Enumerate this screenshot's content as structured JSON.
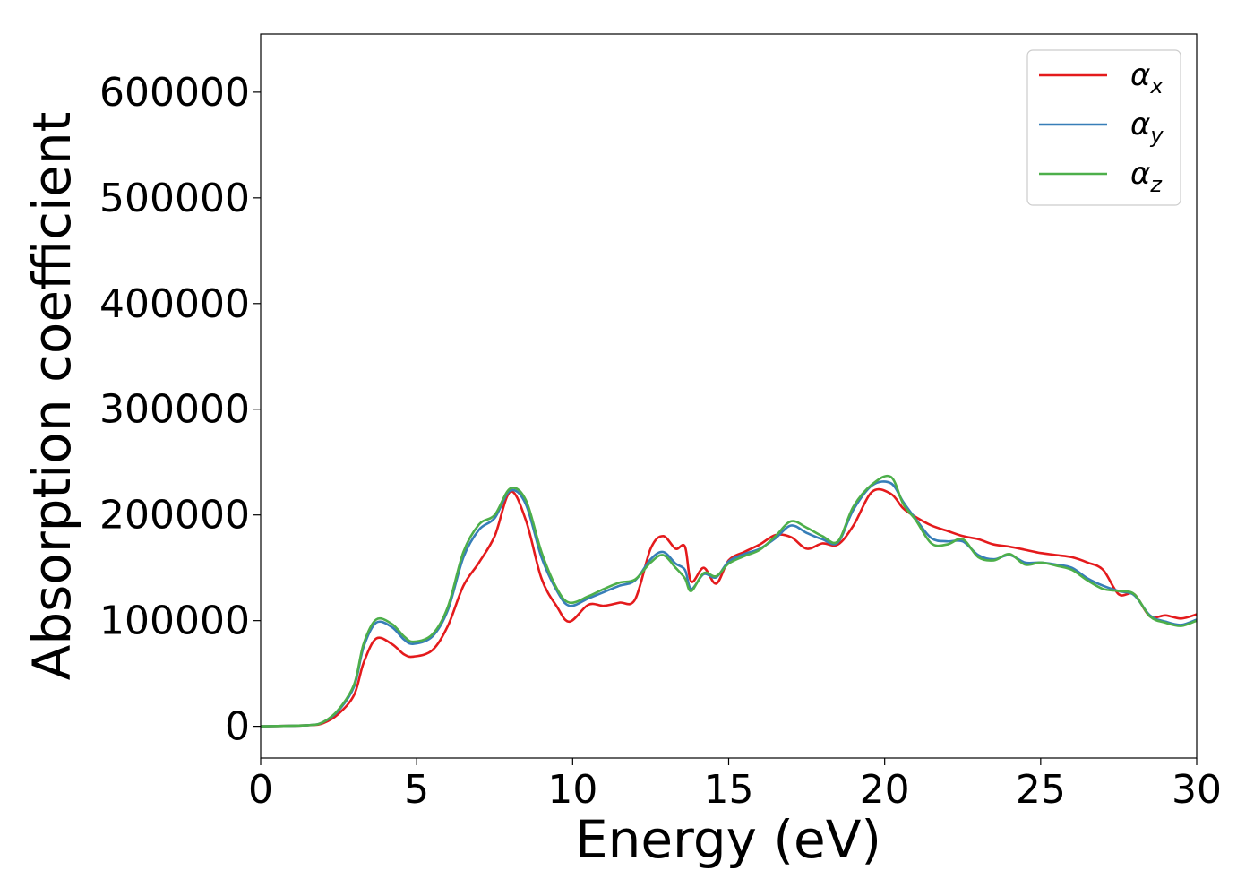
{
  "chart_data": {
    "type": "line",
    "title": "",
    "xlabel": "Energy (eV)",
    "ylabel": "Absorption coefficient",
    "xlim": [
      0,
      30
    ],
    "ylim": [
      -30000,
      655000
    ],
    "xticks": [
      0,
      5,
      10,
      15,
      20,
      25,
      30
    ],
    "yticks": [
      0,
      100000,
      200000,
      300000,
      400000,
      500000,
      600000
    ],
    "xtick_labels": [
      "0",
      "5",
      "10",
      "15",
      "20",
      "25",
      "30"
    ],
    "ytick_labels": [
      "0",
      "100000",
      "200000",
      "300000",
      "400000",
      "500000",
      "600000"
    ],
    "grid": false,
    "legend_position": "top-right",
    "series": [
      {
        "name": "α",
        "subscript": "x",
        "color": "#e41a1c",
        "x": [
          0,
          1.5,
          2,
          2.5,
          3,
          3.3,
          3.7,
          4.2,
          4.6,
          4.9,
          5.5,
          6,
          6.5,
          7,
          7.5,
          8,
          8.5,
          9,
          9.5,
          9.9,
          10.5,
          11,
          11.5,
          12,
          12.5,
          12.9,
          13.3,
          13.6,
          13.8,
          14.2,
          14.6,
          15,
          15.5,
          16,
          16.5,
          17,
          17.5,
          18,
          18.5,
          19,
          19.6,
          20.2,
          20.6,
          21,
          21.5,
          22,
          22.5,
          23,
          23.5,
          24,
          24.5,
          25,
          25.5,
          26,
          26.5,
          27,
          27.5,
          28,
          28.5,
          29,
          29.5,
          30
        ],
        "y": [
          0,
          1000,
          3000,
          12000,
          30000,
          60000,
          83000,
          78000,
          68000,
          66000,
          72000,
          95000,
          133000,
          155000,
          180000,
          222000,
          195000,
          140000,
          113000,
          99000,
          115000,
          114000,
          117000,
          120000,
          168000,
          180000,
          168000,
          170000,
          137000,
          150000,
          135000,
          157000,
          165000,
          172000,
          181000,
          179000,
          168000,
          173000,
          172000,
          190000,
          222000,
          220000,
          206000,
          198000,
          190000,
          185000,
          180000,
          177000,
          172000,
          170000,
          167000,
          164000,
          162000,
          160000,
          155000,
          148000,
          125000,
          125000,
          104000,
          105000,
          102000,
          106000
        ]
      },
      {
        "name": "α",
        "subscript": "y",
        "color": "#377eb8",
        "x": [
          0,
          1.5,
          2,
          2.5,
          3,
          3.3,
          3.7,
          4.2,
          4.6,
          4.9,
          5.5,
          6,
          6.5,
          7,
          7.5,
          8,
          8.5,
          9,
          9.5,
          9.9,
          10.5,
          11,
          11.5,
          12,
          12.5,
          12.9,
          13.3,
          13.6,
          13.8,
          14.2,
          14.6,
          15,
          15.5,
          16,
          16.5,
          17,
          17.5,
          18,
          18.5,
          19,
          19.6,
          20.2,
          20.6,
          21,
          21.5,
          22,
          22.5,
          23,
          23.5,
          24,
          24.5,
          25,
          25.5,
          26,
          26.5,
          27,
          27.5,
          28,
          28.5,
          29,
          29.5,
          30
        ],
        "y": [
          0,
          1000,
          4000,
          15000,
          38000,
          75000,
          98000,
          94000,
          82000,
          78000,
          85000,
          110000,
          160000,
          186000,
          197000,
          223000,
          210000,
          160000,
          128000,
          114000,
          121000,
          127000,
          133000,
          138000,
          158000,
          165000,
          154000,
          148000,
          130000,
          144000,
          141000,
          156000,
          163000,
          168000,
          178000,
          190000,
          183000,
          177000,
          174000,
          205000,
          228000,
          230000,
          212000,
          196000,
          178000,
          175000,
          175000,
          162000,
          158000,
          162000,
          155000,
          155000,
          153000,
          150000,
          140000,
          133000,
          128000,
          124000,
          105000,
          99000,
          96000,
          101000
        ]
      },
      {
        "name": "α",
        "subscript": "z",
        "color": "#4daf4a",
        "x": [
          0,
          1.5,
          2,
          2.5,
          3,
          3.3,
          3.7,
          4.2,
          4.6,
          4.9,
          5.5,
          6,
          6.5,
          7,
          7.5,
          8,
          8.5,
          9,
          9.5,
          9.9,
          10.5,
          11,
          11.5,
          12,
          12.5,
          12.9,
          13.3,
          13.6,
          13.8,
          14.2,
          14.6,
          15,
          15.5,
          16,
          16.5,
          17,
          17.5,
          18,
          18.5,
          19,
          19.6,
          20.2,
          20.6,
          21,
          21.5,
          22,
          22.5,
          23,
          23.5,
          24,
          24.5,
          25,
          25.5,
          26,
          26.5,
          27,
          27.5,
          28,
          28.5,
          29,
          29.5,
          30
        ],
        "y": [
          0,
          1000,
          4000,
          16000,
          40000,
          78000,
          101000,
          97000,
          85000,
          80000,
          87000,
          113000,
          165000,
          191000,
          200000,
          225000,
          214000,
          165000,
          130000,
          117000,
          123000,
          130000,
          136000,
          139000,
          155000,
          162000,
          150000,
          140000,
          128000,
          145000,
          142000,
          154000,
          161000,
          167000,
          180000,
          194000,
          188000,
          180000,
          175000,
          208000,
          229000,
          236000,
          210000,
          195000,
          173000,
          172000,
          177000,
          160000,
          157000,
          163000,
          153000,
          155000,
          152000,
          148000,
          138000,
          130000,
          128000,
          125000,
          104000,
          98000,
          95000,
          100000
        ]
      }
    ]
  }
}
